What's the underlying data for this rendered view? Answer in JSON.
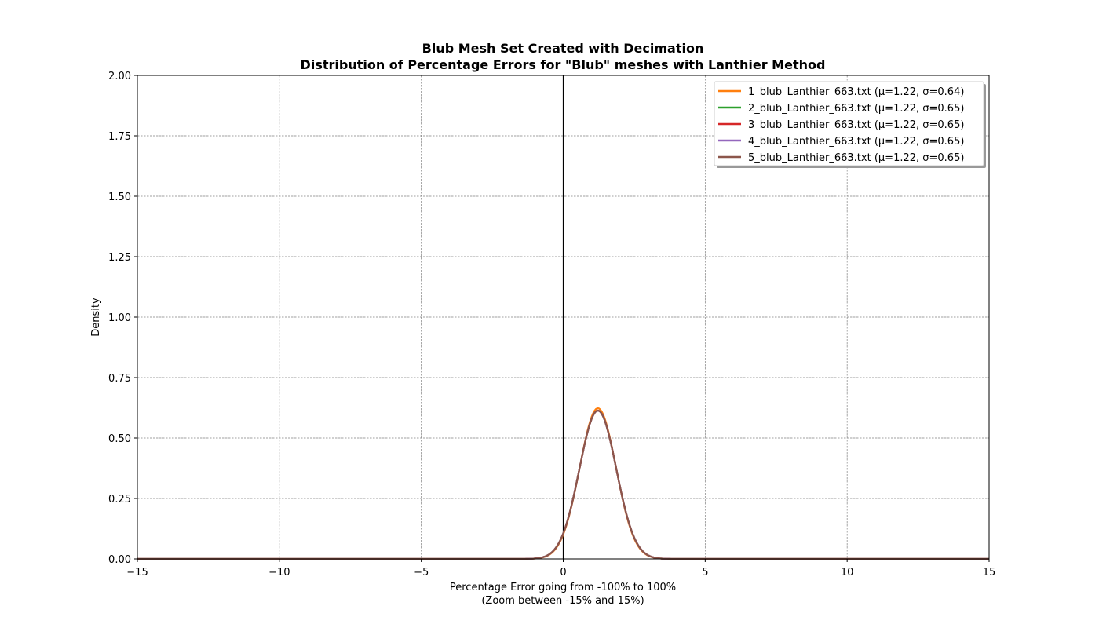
{
  "chart_data": {
    "type": "line",
    "title": "Blub Mesh Set Created with Decimation",
    "subtitle": "Distribution of Percentage Errors for \"Blub\" meshes with Lanthier Method",
    "xlabel": "Percentage Error going from -100% to 100%",
    "xlabel2": "(Zoom between -15% and 15%)",
    "ylabel": "Density",
    "xlim": [
      -15,
      15
    ],
    "ylim": [
      0,
      2
    ],
    "xticks": [
      -15,
      -10,
      -5,
      0,
      5,
      10,
      15
    ],
    "xtick_labels": [
      "−15",
      "−10",
      "−5",
      "0",
      "5",
      "10",
      "15"
    ],
    "yticks": [
      0,
      0.25,
      0.5,
      0.75,
      1.0,
      1.25,
      1.5,
      1.75,
      2.0
    ],
    "ytick_labels": [
      "0.00",
      "0.25",
      "0.50",
      "0.75",
      "1.00",
      "1.25",
      "1.50",
      "1.75",
      "2.00"
    ],
    "grid": true,
    "vline_x": 0,
    "legend_position": "top-right",
    "series": [
      {
        "name": "1_blub_Lanthier_663.txt (μ=1.22, σ=0.64)",
        "mu": 1.22,
        "sigma": 0.64,
        "color": "#ff7f0e"
      },
      {
        "name": "2_blub_Lanthier_663.txt (μ=1.22, σ=0.65)",
        "mu": 1.22,
        "sigma": 0.65,
        "color": "#2ca02c"
      },
      {
        "name": "3_blub_Lanthier_663.txt (μ=1.22, σ=0.65)",
        "mu": 1.22,
        "sigma": 0.65,
        "color": "#d62728"
      },
      {
        "name": "4_blub_Lanthier_663.txt (μ=1.22, σ=0.65)",
        "mu": 1.22,
        "sigma": 0.65,
        "color": "#9467bd"
      },
      {
        "name": "5_blub_Lanthier_663.txt (μ=1.22, σ=0.65)",
        "mu": 1.22,
        "sigma": 0.65,
        "color": "#8c564b"
      }
    ]
  }
}
